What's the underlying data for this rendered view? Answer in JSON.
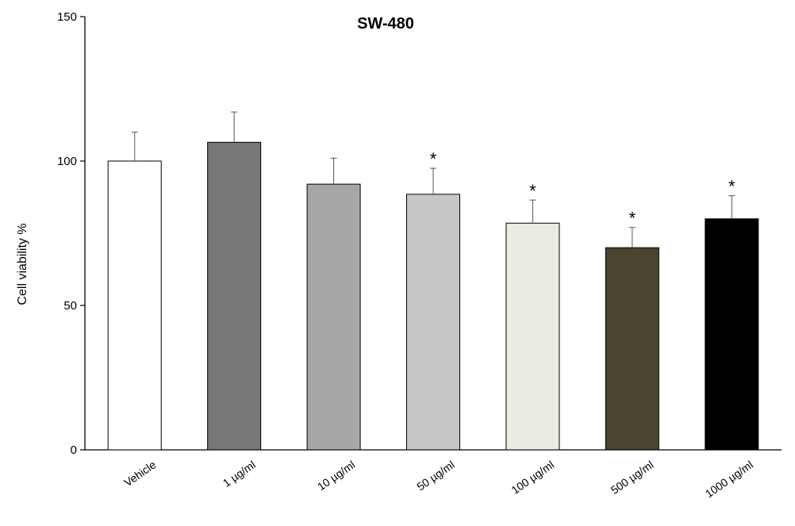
{
  "chart_data": {
    "type": "bar",
    "title": "SW-480",
    "ylabel": "Cell viability %",
    "xlabel": "",
    "ylim": [
      0,
      150
    ],
    "yticks": [
      0,
      50,
      100,
      150
    ],
    "grid": false,
    "categories": [
      "Vehicle",
      "1 µg/ml",
      "10 µg/ml",
      "50 µg/ml",
      "100 µg/ml",
      "500 µg/ml",
      "1000 µg/ml"
    ],
    "values": [
      100,
      106.5,
      92,
      88.5,
      78.5,
      70,
      80
    ],
    "errors": [
      10,
      10.5,
      9,
      9,
      8,
      7,
      8
    ],
    "significance": [
      "",
      "",
      "",
      "*",
      "*",
      "*",
      "*"
    ],
    "bar_colors": [
      "#ffffff",
      "#777777",
      "#a6a6a6",
      "#c6c6c6",
      "#ecebe2",
      "#4a452f",
      "#000000"
    ]
  }
}
